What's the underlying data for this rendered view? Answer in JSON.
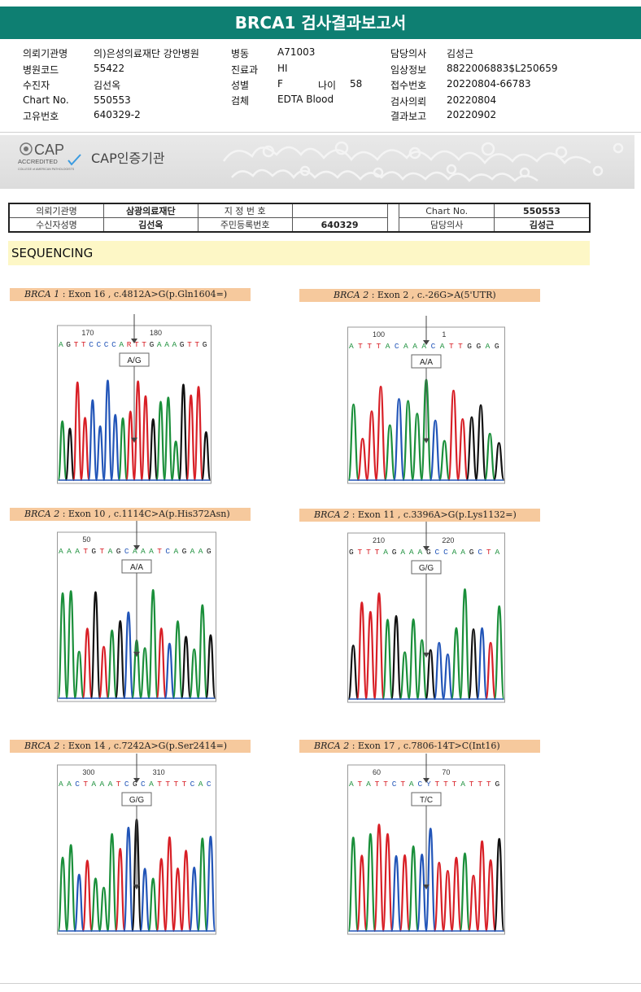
{
  "report": {
    "title": "BRCA1 검사결과보고서",
    "header_left": [
      {
        "label": "의뢰기관명",
        "value": "의)은성의료재단 강안병원"
      },
      {
        "label": "병원코드",
        "value": "55422"
      },
      {
        "label": "수진자",
        "value": "김선옥"
      },
      {
        "label": "Chart No.",
        "value": "550553"
      },
      {
        "label": "고유번호",
        "value": "640329-2"
      }
    ],
    "header_mid": [
      {
        "label": "병동",
        "value": "A71003"
      },
      {
        "label": "진료과",
        "value": "HI"
      },
      {
        "label": "성별",
        "value": "F"
      },
      {
        "label": "검체",
        "value": "EDTA Blood"
      }
    ],
    "age": {
      "label": "나이",
      "value": "58"
    },
    "header_right": [
      {
        "label": "담당의사",
        "value": "김성근"
      },
      {
        "label": "임상정보",
        "value": "8822006883$L250659"
      },
      {
        "label": "접수번호",
        "value": "20220804-66783"
      },
      {
        "label": "검사의뢰",
        "value": "20220804"
      },
      {
        "label": "결과보고",
        "value": "20220902"
      }
    ]
  },
  "cap": {
    "logo_big": "CAP",
    "logo_accredited": "ACCREDITED",
    "logo_sub": "COLLEGE of AMERICAN PATHOLOGISTS",
    "text": "CAP인증기관"
  },
  "info_table": {
    "r1": {
      "l1": "의뢰기관명",
      "v1": "삼광의료재단",
      "l2": "지 정 번 호",
      "v2": "",
      "l3": "Chart No.",
      "v3": "550553"
    },
    "r2": {
      "l1": "수신자성명",
      "v1": "김선옥",
      "l2": "주민등록번호",
      "v2": "640329",
      "l3": "담당의사",
      "v3": "김성근"
    }
  },
  "section": {
    "title": "SEQUENCING"
  },
  "panels": [
    {
      "gene": "BRCA 1",
      "desc": " : Exon 16 , c.4812A>G(p.Gln1604=)",
      "tick1": "170",
      "tick2": "180",
      "seq": "AGTTCCCCARTTGAAAGTTG",
      "call": "A/G",
      "colors": {
        "A": "#1a8f3a",
        "C": "#2255b8",
        "G": "#111111",
        "T": "#d81f26",
        "R": "#d81f26"
      }
    },
    {
      "gene": "BRCA 2",
      "desc": " : Exon 2 , c.-26G>A(5'UTR)",
      "tick1": "100",
      "tick2": "1",
      "seq": "ATTTACAAACATTGGAG",
      "call": "A/A",
      "colors": {
        "A": "#1a8f3a",
        "C": "#2255b8",
        "G": "#111111",
        "T": "#d81f26"
      }
    },
    {
      "gene": "BRCA 2",
      "desc": " : Exon 10 , c.1114C>A(p.His372Asn)",
      "tick1": "50",
      "tick2": "",
      "seq": "AAATGTAGCAAATCAGAAG",
      "call": "A/A",
      "colors": {
        "A": "#1a8f3a",
        "C": "#2255b8",
        "G": "#111111",
        "T": "#d81f26"
      }
    },
    {
      "gene": "BRCA 2",
      "desc": " : Exon 11 , c.3396A>G(p.Lys1132=)",
      "tick1": "210",
      "tick2": "220",
      "seq": "GTTTAGAAAGCCAAGCTA",
      "call": "G/G",
      "colors": {
        "A": "#1a8f3a",
        "C": "#2255b8",
        "G": "#111111",
        "T": "#d81f26"
      }
    },
    {
      "gene": "BRCA 2",
      "desc": " : Exon 14 , c.7242A>G(p.Ser2414=)",
      "tick1": "300",
      "tick2": "310",
      "seq": "AACTAAATCGCATTTTCAC",
      "call": "G/G",
      "colors": {
        "A": "#1a8f3a",
        "C": "#2255b8",
        "G": "#111111",
        "T": "#d81f26"
      }
    },
    {
      "gene": "BRCA 2",
      "desc": " : Exon 17 , c.7806-14T>C(Int16)",
      "tick1": "60",
      "tick2": "70",
      "seq": "ATATTCTACYTTTATTTG",
      "call": "T/C",
      "colors": {
        "A": "#1a8f3a",
        "C": "#2255b8",
        "G": "#111111",
        "T": "#d81f26",
        "Y": "#2255b8"
      }
    }
  ]
}
